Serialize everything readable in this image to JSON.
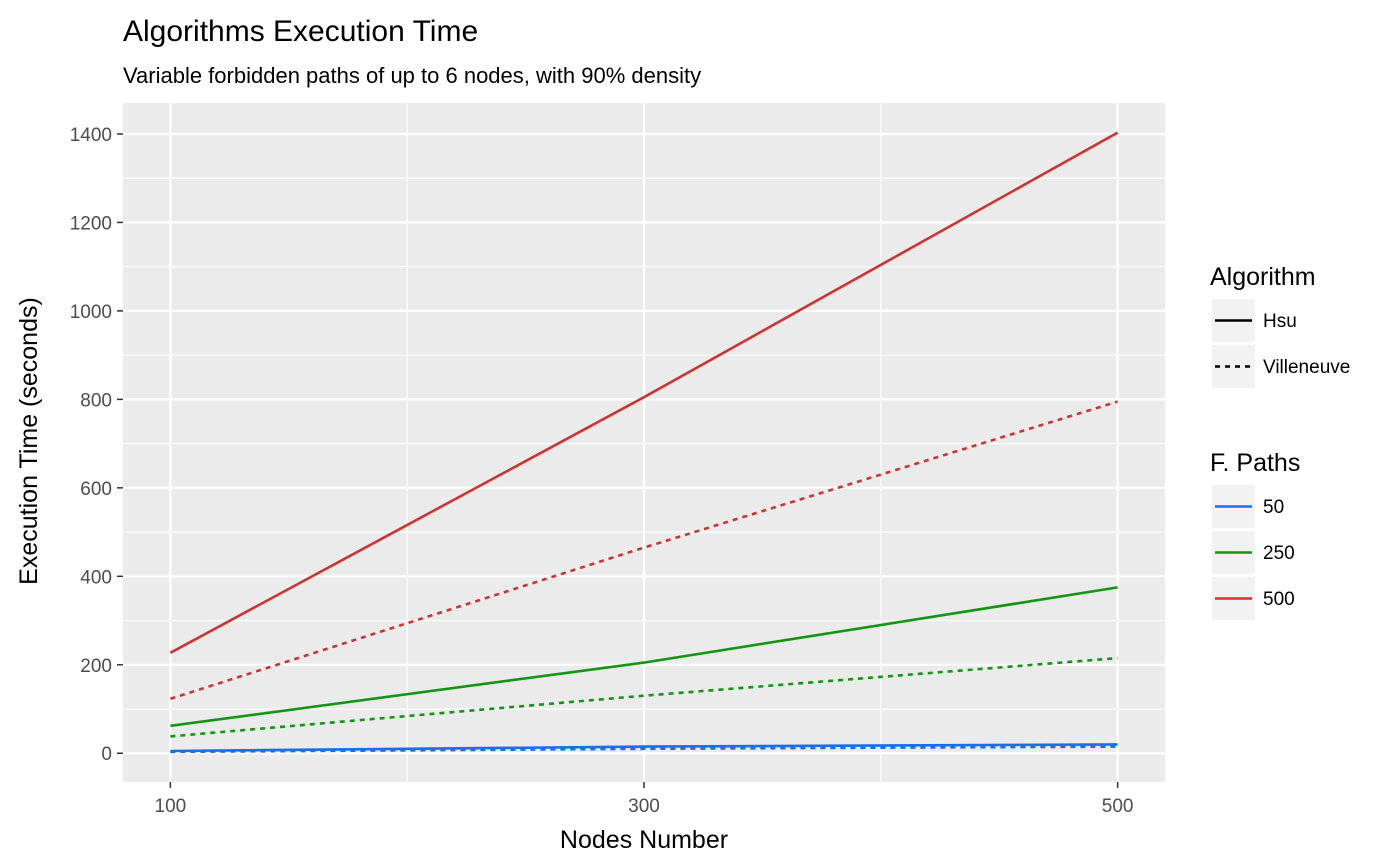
{
  "chart_data": {
    "type": "line",
    "title": "Algorithms Execution Time",
    "subtitle": "Variable forbidden paths of up to 6 nodes, with 90% density",
    "xlabel": "Nodes Number",
    "ylabel": "Execution Time (seconds)",
    "x": [
      100,
      300,
      500
    ],
    "xlim": [
      80,
      520
    ],
    "ylim": [
      -65,
      1470
    ],
    "x_ticks": [
      100,
      300,
      500
    ],
    "y_ticks": [
      0,
      200,
      400,
      600,
      800,
      1000,
      1200,
      1400
    ],
    "x_tick_labels": [
      "100",
      "300",
      "500"
    ],
    "y_tick_labels": [
      "0",
      "200",
      "400",
      "600",
      "800",
      "1000",
      "1200",
      "1400"
    ],
    "grid": true,
    "legend_position": "right",
    "legends": {
      "algorithm": {
        "title": "Algorithm",
        "entries": [
          {
            "label": "Hsu",
            "linetype": "solid"
          },
          {
            "label": "Villeneuve",
            "linetype": "dashed"
          }
        ]
      },
      "paths": {
        "title": "F. Paths",
        "entries": [
          {
            "label": "50",
            "color": "#1a6ee8"
          },
          {
            "label": "250",
            "color": "#119611"
          },
          {
            "label": "500",
            "color": "#cc3333"
          }
        ]
      }
    },
    "series": [
      {
        "algorithm": "Hsu",
        "paths": "50",
        "color": "#1a6ee8",
        "linetype": "solid",
        "values": [
          5,
          15,
          20
        ]
      },
      {
        "algorithm": "Villeneuve",
        "paths": "50",
        "color": "#1a6ee8",
        "linetype": "dashed",
        "values": [
          3,
          10,
          15
        ]
      },
      {
        "algorithm": "Hsu",
        "paths": "250",
        "color": "#119611",
        "linetype": "solid",
        "values": [
          62,
          205,
          375
        ]
      },
      {
        "algorithm": "Villeneuve",
        "paths": "250",
        "color": "#119611",
        "linetype": "dashed",
        "values": [
          38,
          130,
          215
        ]
      },
      {
        "algorithm": "Hsu",
        "paths": "500",
        "color": "#cc3333",
        "linetype": "solid",
        "values": [
          227,
          805,
          1403
        ]
      },
      {
        "algorithm": "Villeneuve",
        "paths": "500",
        "color": "#cc3333",
        "linetype": "dashed",
        "values": [
          123,
          465,
          795
        ]
      }
    ]
  }
}
